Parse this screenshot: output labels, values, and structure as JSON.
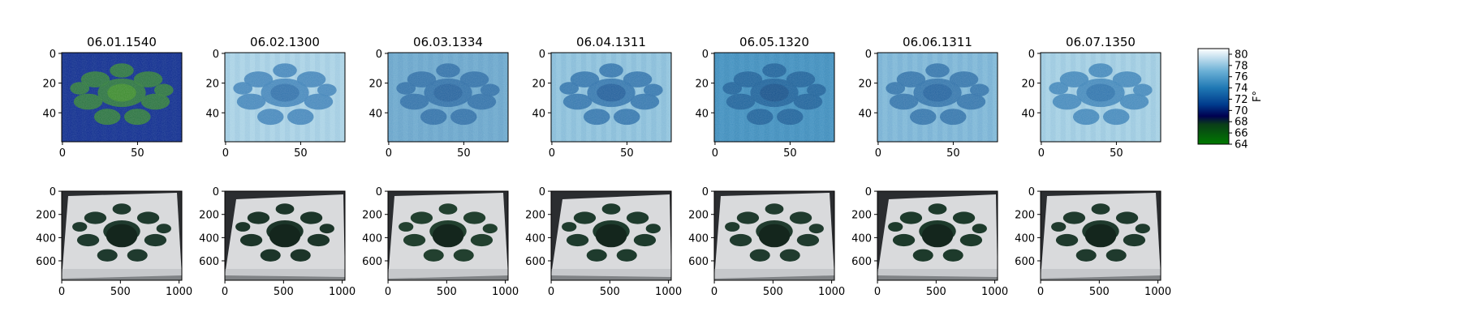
{
  "chart_data": {
    "type": "heatmap",
    "panels": {
      "thermal": [
        {
          "title": "06.01.1540",
          "shape": [
            60,
            80
          ],
          "xticks": [
            0,
            50
          ],
          "yticks": [
            0,
            20,
            40
          ],
          "palette": [
            "#0c2a8e",
            "#1d4a8a",
            "#2e7a3a",
            "#3f8f2a"
          ]
        },
        {
          "title": "06.02.1300",
          "shape": [
            60,
            80
          ],
          "xticks": [
            0,
            50
          ],
          "yticks": [
            0,
            20,
            40
          ],
          "palette": [
            "#a9d2e5",
            "#5f9fc4",
            "#3f82b8",
            "#2f6fa8"
          ]
        },
        {
          "title": "06.03.1334",
          "shape": [
            60,
            80
          ],
          "xticks": [
            0,
            50
          ],
          "yticks": [
            0,
            20,
            40
          ],
          "palette": [
            "#6aa7cc",
            "#3f83b6",
            "#2e6ea6",
            "#24609b"
          ]
        },
        {
          "title": "06.04.1311",
          "shape": [
            60,
            80
          ],
          "xticks": [
            0,
            50
          ],
          "yticks": [
            0,
            20,
            40
          ],
          "palette": [
            "#8ec2dc",
            "#4a8fbf",
            "#2f72aa",
            "#1f5a98"
          ]
        },
        {
          "title": "06.05.1320",
          "shape": [
            60,
            80
          ],
          "xticks": [
            0,
            50
          ],
          "yticks": [
            0,
            20,
            40
          ],
          "palette": [
            "#3f8fbf",
            "#2571a8",
            "#1c5f98",
            "#164f88"
          ]
        },
        {
          "title": "06.06.1311",
          "shape": [
            60,
            80
          ],
          "xticks": [
            0,
            50
          ],
          "yticks": [
            0,
            20,
            40
          ],
          "palette": [
            "#7cb6d6",
            "#4386bb",
            "#2f71a8",
            "#22629c"
          ]
        },
        {
          "title": "06.07.1350",
          "shape": [
            60,
            80
          ],
          "xticks": [
            0,
            50
          ],
          "yticks": [
            0,
            20,
            40
          ],
          "palette": [
            "#a3cfe3",
            "#5d9cc6",
            "#3e84b8",
            "#2d71aa"
          ]
        }
      ],
      "rgb": [
        {
          "shape": [
            768,
            1024
          ],
          "xticks": [
            0,
            500,
            1000
          ],
          "yticks": [
            0,
            200,
            400,
            600
          ]
        },
        {
          "shape": [
            768,
            1024
          ],
          "xticks": [
            0,
            500,
            1000
          ],
          "yticks": [
            0,
            200,
            400,
            600
          ]
        },
        {
          "shape": [
            768,
            1024
          ],
          "xticks": [
            0,
            500,
            1000
          ],
          "yticks": [
            0,
            200,
            400,
            600
          ]
        },
        {
          "shape": [
            768,
            1024
          ],
          "xticks": [
            0,
            500,
            1000
          ],
          "yticks": [
            0,
            200,
            400,
            600
          ]
        },
        {
          "shape": [
            768,
            1024
          ],
          "xticks": [
            0,
            500,
            1000
          ],
          "yticks": [
            0,
            200,
            400,
            600
          ]
        },
        {
          "shape": [
            768,
            1024
          ],
          "xticks": [
            0,
            500,
            1000
          ],
          "yticks": [
            0,
            200,
            400,
            600
          ]
        },
        {
          "shape": [
            768,
            1024
          ],
          "xticks": [
            0,
            500,
            1000
          ],
          "yticks": [
            0,
            200,
            400,
            600
          ]
        }
      ]
    },
    "colorbar": {
      "label": "F°",
      "range": [
        64,
        81
      ],
      "ticks": [
        64,
        66,
        68,
        70,
        72,
        74,
        76,
        78,
        80
      ],
      "stops": [
        {
          "v": 64,
          "color": "#007a00"
        },
        {
          "v": 67.5,
          "color": "#0a3e18"
        },
        {
          "v": 69,
          "color": "#000050"
        },
        {
          "v": 71,
          "color": "#003a8c"
        },
        {
          "v": 74,
          "color": "#1f78b4"
        },
        {
          "v": 77,
          "color": "#6bb0d6"
        },
        {
          "v": 81,
          "color": "#ffffff"
        }
      ]
    }
  }
}
